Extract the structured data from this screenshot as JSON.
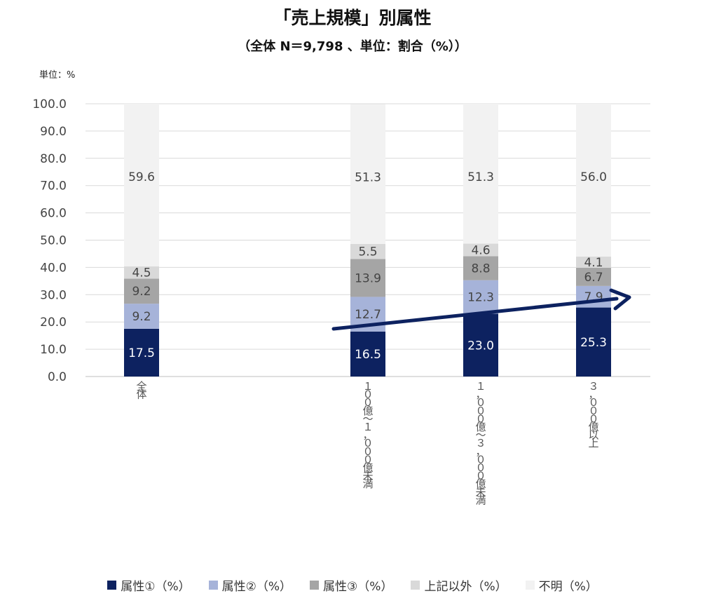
{
  "chart_data": {
    "type": "bar",
    "stacked": true,
    "title": "「売上規模」別属性",
    "subtitle": "（全体 N＝9,798 、単位：割合（%））",
    "unit_label": "単位：%",
    "ylim": [
      0,
      100
    ],
    "yticks": [
      "100.0",
      "90.0",
      "80.0",
      "70.0",
      "60.0",
      "50.0",
      "40.0",
      "30.0",
      "20.0",
      "10.0",
      "0.0"
    ],
    "ytick_values": [
      100,
      90,
      80,
      70,
      60,
      50,
      40,
      30,
      20,
      10,
      0
    ],
    "grid": true,
    "legend_position": "bottom",
    "categories": [
      {
        "label": "全体",
        "slot": 0
      },
      {
        "label": "１００億～１，０００億未満",
        "slot": 2
      },
      {
        "label": "１，０００億～３，０００億未満",
        "slot": 3
      },
      {
        "label": "３，０００億以上",
        "slot": 4
      }
    ],
    "series": [
      {
        "name": "属性①（%）",
        "color": "#0d2260",
        "label_color": "#ffffff",
        "values": [
          17.5,
          16.5,
          23.0,
          25.3
        ]
      },
      {
        "name": "属性②（%）",
        "color": "#a6b3d9",
        "label_color": "#444444",
        "values": [
          9.2,
          12.7,
          12.3,
          7.9
        ]
      },
      {
        "name": "属性③（%）",
        "color": "#a5a5a5",
        "label_color": "#444444",
        "values": [
          9.2,
          13.9,
          8.8,
          6.7
        ]
      },
      {
        "name": "上記以外（%）",
        "color": "#d9d9d9",
        "label_color": "#444444",
        "values": [
          4.5,
          5.5,
          4.6,
          4.1
        ]
      },
      {
        "name": "不明（%）",
        "color": "#f2f2f2",
        "label_color": "#444444",
        "values": [
          59.6,
          51.3,
          51.3,
          56.0
        ]
      }
    ],
    "annotations": [
      {
        "type": "trend-arrow",
        "color": "#0d2260"
      }
    ]
  }
}
